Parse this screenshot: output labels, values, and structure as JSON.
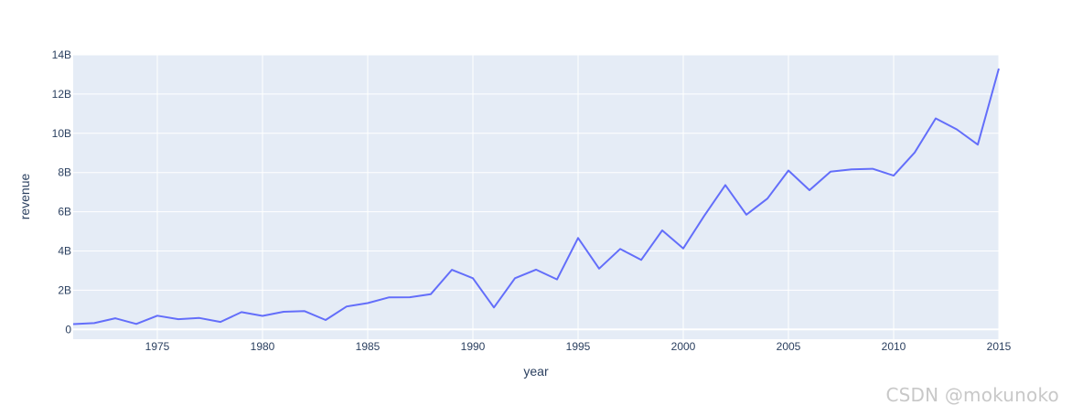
{
  "chart_data": {
    "type": "line",
    "xlabel": "year",
    "ylabel": "revenue",
    "xlim": [
      1971,
      2015
    ],
    "ylim": [
      -0.5,
      14
    ],
    "x_ticks": [
      1975,
      1980,
      1985,
      1990,
      1995,
      2000,
      2005,
      2010,
      2015
    ],
    "y_ticks": [
      0,
      2,
      4,
      6,
      8,
      10,
      12,
      14
    ],
    "y_tick_labels": [
      "0",
      "2B",
      "4B",
      "6B",
      "8B",
      "10B",
      "12B",
      "14B"
    ],
    "y_unit": "billions",
    "grid": true,
    "legend": "none",
    "colors": {
      "plot_bg": "#e5ecf6",
      "grid": "#ffffff",
      "line": "#636efa",
      "tick_text": "#2a3f5f",
      "axis_title": "#2a3f5f"
    },
    "series": [
      {
        "x": [
          1971,
          1972,
          1973,
          1974,
          1975,
          1976,
          1977,
          1978,
          1979,
          1980,
          1981,
          1982,
          1983,
          1984,
          1985,
          1986,
          1987,
          1988,
          1989,
          1990,
          1991,
          1992,
          1993,
          1994,
          1995,
          1996,
          1997,
          1998,
          1999,
          2000,
          2001,
          2002,
          2003,
          2004,
          2005,
          2006,
          2007,
          2008,
          2009,
          2010,
          2011,
          2012,
          2013,
          2014,
          2015
        ],
        "y": [
          0.27,
          0.32,
          0.57,
          0.28,
          0.7,
          0.52,
          0.58,
          0.38,
          0.88,
          0.69,
          0.9,
          0.93,
          0.48,
          1.17,
          1.34,
          1.63,
          1.64,
          1.8,
          3.04,
          2.61,
          1.12,
          2.61,
          3.05,
          2.55,
          4.66,
          3.1,
          4.1,
          3.54,
          5.05,
          4.13,
          5.8,
          7.36,
          5.85,
          6.67,
          8.1,
          7.1,
          8.04,
          8.16,
          8.19,
          7.84,
          9.02,
          10.76,
          10.2,
          9.42,
          13.3
        ]
      }
    ]
  },
  "watermark": "CSDN @mokunoko"
}
